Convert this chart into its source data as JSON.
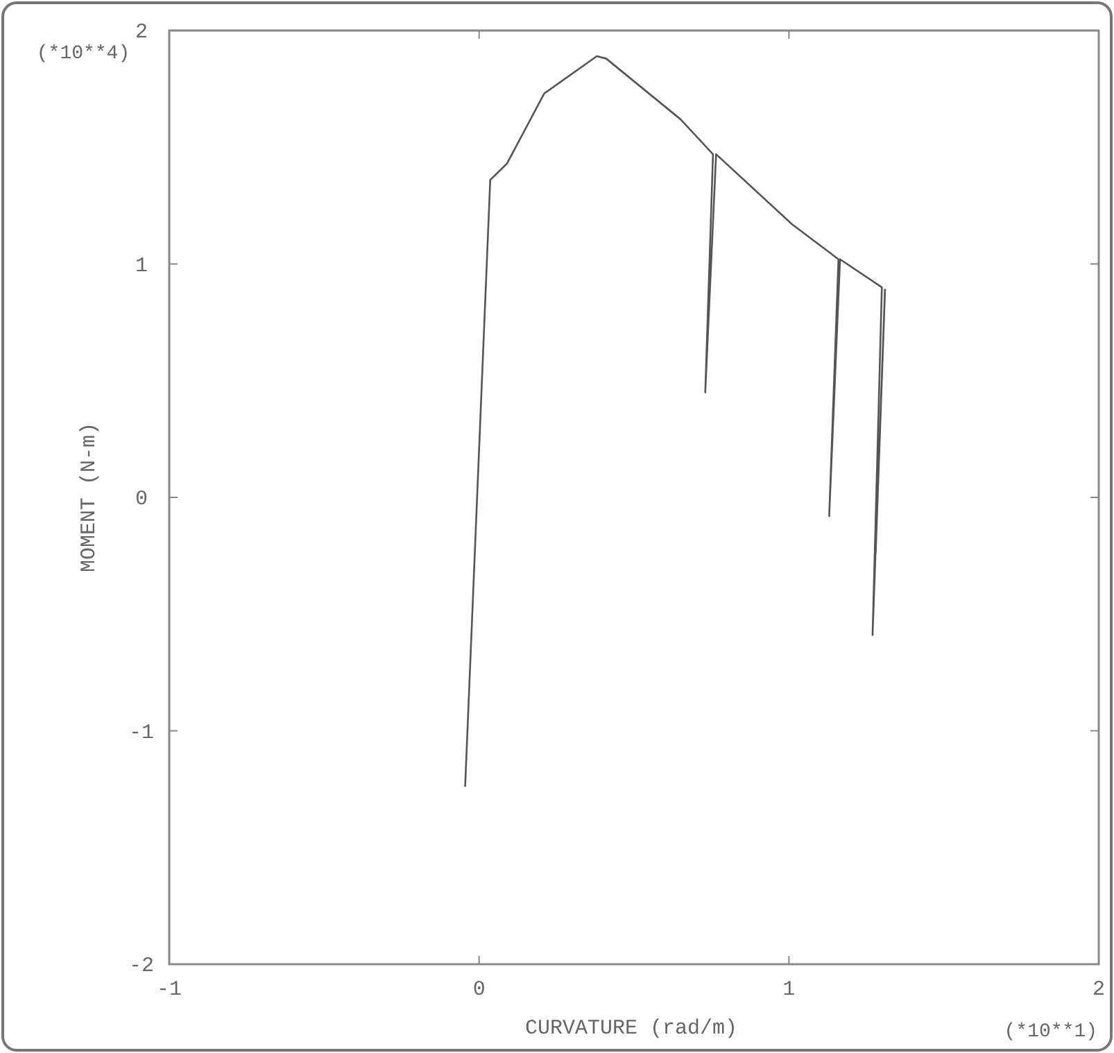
{
  "chart_data": {
    "type": "line",
    "xlabel": "CURVATURE (rad/m)",
    "ylabel": "MOMENT (N-m)",
    "annotations": [
      "(*10**4)",
      "(*10**1)"
    ],
    "xlim": [
      -1,
      2
    ],
    "xticks": [
      -1,
      0,
      1,
      2
    ],
    "ylim": [
      -2,
      2
    ],
    "yticks": [
      -2,
      -1,
      0,
      1,
      2
    ],
    "grid": false,
    "marker": "none",
    "line_style": "solid",
    "series": [
      {
        "color": "#555555",
        "x": [
          -0.045,
          0.036,
          0.09,
          0.21,
          0.38,
          0.41,
          0.65,
          0.755,
          0.73,
          0.765,
          1.01,
          1.16,
          1.13,
          1.165,
          1.3,
          1.27,
          1.31,
          1.28,
          1.31
        ],
        "values": [
          -1.24,
          1.36,
          1.43,
          1.73,
          1.89,
          1.88,
          1.62,
          1.47,
          0.45,
          1.47,
          1.17,
          1.02,
          -0.08,
          1.02,
          0.9,
          -0.59,
          0.89,
          -0.24,
          0.88
        ]
      }
    ]
  }
}
